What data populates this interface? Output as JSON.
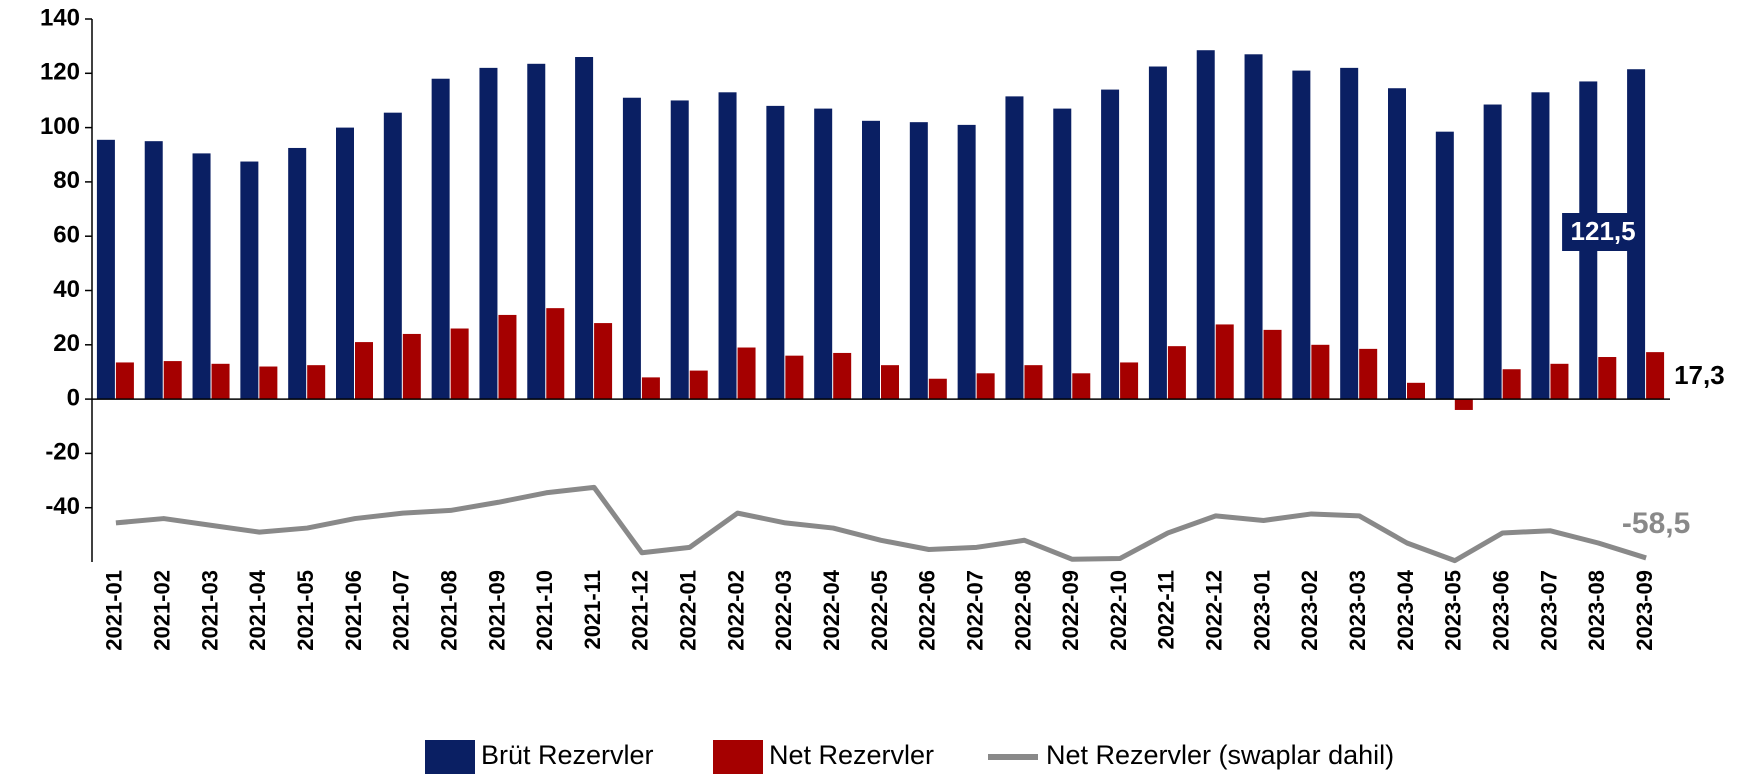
{
  "chart_data": {
    "type": "bar_line",
    "categories": [
      "2021-01",
      "2021-02",
      "2021-03",
      "2021-04",
      "2021-05",
      "2021-06",
      "2021-07",
      "2021-08",
      "2021-09",
      "2021-10",
      "2021-11",
      "2021-12",
      "2022-01",
      "2022-02",
      "2022-03",
      "2022-04",
      "2022-05",
      "2022-06",
      "2022-07",
      "2022-08",
      "2022-09",
      "2022-10",
      "2022-11",
      "2022-12",
      "2023-01",
      "2023-02",
      "2023-03",
      "2023-04",
      "2023-05",
      "2023-06",
      "2023-07",
      "2023-08",
      "2023-09"
    ],
    "series": [
      {
        "name": "Brüt Rezervler",
        "type": "bar",
        "color": "#0a1f63",
        "values": [
          95.5,
          95,
          90.5,
          87.5,
          92.5,
          100,
          105.5,
          118,
          122,
          123.5,
          126,
          111,
          110,
          113,
          108,
          107,
          102.5,
          102,
          101,
          111.5,
          107,
          114,
          122.5,
          128.5,
          127,
          121,
          122,
          114.5,
          98.5,
          108.5,
          113,
          117,
          121.5
        ],
        "value_labels": [
          null,
          null,
          null,
          null,
          null,
          null,
          null,
          null,
          null,
          null,
          null,
          null,
          null,
          null,
          null,
          null,
          null,
          null,
          null,
          null,
          null,
          null,
          null,
          null,
          null,
          null,
          null,
          null,
          null,
          null,
          null,
          null,
          "121,5"
        ]
      },
      {
        "name": "Net Rezervler",
        "type": "bar",
        "color": "#a50000",
        "values": [
          13.5,
          14,
          13,
          12,
          12.5,
          21,
          24,
          26,
          31,
          33.5,
          28,
          8,
          10.5,
          19,
          16,
          17,
          12.5,
          7.5,
          9.5,
          12.5,
          9.5,
          13.5,
          19.5,
          27.5,
          25.5,
          20,
          18.5,
          6,
          -4,
          11,
          13,
          15.5,
          17.3
        ],
        "value_labels": [
          null,
          null,
          null,
          null,
          null,
          null,
          null,
          null,
          null,
          null,
          null,
          null,
          null,
          null,
          null,
          null,
          null,
          null,
          null,
          null,
          null,
          null,
          null,
          null,
          null,
          null,
          null,
          null,
          null,
          null,
          null,
          null,
          "17,3"
        ]
      },
      {
        "name": "Net Rezervler (swaplar dahil)",
        "type": "line",
        "color": "#898989",
        "values": [
          -45.6,
          -44,
          -46.5,
          -49,
          -47.5,
          -44,
          -42,
          -41,
          -38,
          -34.5,
          -32.5,
          -56.6,
          -54.6,
          -42,
          -45.6,
          -47.5,
          -52,
          -55.4,
          -54.6,
          -52,
          -59,
          -58.7,
          -49.3,
          -43,
          -44.7,
          -42.3,
          -43,
          -53,
          -59.5,
          -49.3,
          -48.5,
          -53,
          -58.5
        ],
        "value_labels": [
          null,
          null,
          null,
          null,
          null,
          null,
          null,
          null,
          null,
          null,
          null,
          null,
          null,
          null,
          null,
          null,
          null,
          null,
          null,
          null,
          null,
          null,
          null,
          null,
          null,
          null,
          null,
          null,
          null,
          null,
          null,
          null,
          "-58,5"
        ]
      }
    ],
    "ylim": [
      -60,
      140
    ],
    "yticks": [
      -40,
      -20,
      0,
      20,
      40,
      60,
      80,
      100,
      120,
      140
    ],
    "legend": "bottom"
  }
}
